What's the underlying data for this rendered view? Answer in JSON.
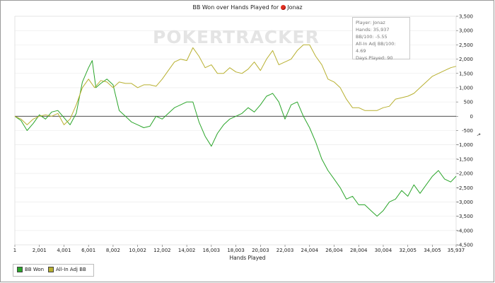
{
  "chart_data": {
    "type": "line",
    "title": "BB Won over Hands Played for",
    "player": "Jonaz",
    "watermark": "POKERTRACKER",
    "xlabel": "Hands Played",
    "xlim": [
      1,
      35937
    ],
    "ylim": [
      -4500,
      3500
    ],
    "x_ticks": [
      1,
      2001,
      4001,
      6001,
      8002,
      10002,
      12002,
      14002,
      16003,
      18003,
      20003,
      22003,
      24004,
      26004,
      28004,
      30004,
      32005,
      34005,
      35937
    ],
    "x_tick_labels": [
      "1",
      "2,001",
      "4,001",
      "6,001",
      "8,002",
      "10,002",
      "12,002",
      "14,002",
      "16,003",
      "18,003",
      "20,003",
      "22,003",
      "24,004",
      "26,004",
      "28,004",
      "30,004",
      "32,005",
      "34,005",
      "35,937"
    ],
    "y_ticks": [
      -4500,
      -4000,
      -3500,
      -3000,
      -2500,
      -2000,
      -1500,
      -1000,
      -500,
      0,
      500,
      1000,
      1500,
      2000,
      2500,
      3000,
      3500
    ],
    "y_tick_labels": [
      "-4,500",
      "-4,000",
      "-3,500",
      "-3,000",
      "-2,500",
      "-2,000",
      "-1,500",
      "-1,000",
      "-500",
      "0",
      "500",
      "1,000",
      "1,500",
      "2,000",
      "2,500",
      "3,000",
      "3,500"
    ],
    "grid": "horizontal",
    "series": [
      {
        "name": "BB Won",
        "color": "#2aa52a",
        "points": [
          [
            1,
            0
          ],
          [
            500,
            -150
          ],
          [
            1000,
            -500
          ],
          [
            1500,
            -250
          ],
          [
            2001,
            50
          ],
          [
            2500,
            -100
          ],
          [
            3000,
            150
          ],
          [
            3500,
            200
          ],
          [
            4001,
            -50
          ],
          [
            4500,
            -300
          ],
          [
            5000,
            100
          ],
          [
            5500,
            1200
          ],
          [
            6001,
            1700
          ],
          [
            6300,
            1950
          ],
          [
            6600,
            1000
          ],
          [
            7000,
            1150
          ],
          [
            7500,
            1300
          ],
          [
            8002,
            1100
          ],
          [
            8500,
            200
          ],
          [
            9000,
            0
          ],
          [
            9500,
            -200
          ],
          [
            10002,
            -300
          ],
          [
            10500,
            -400
          ],
          [
            11000,
            -350
          ],
          [
            11500,
            0
          ],
          [
            12002,
            -100
          ],
          [
            12500,
            100
          ],
          [
            13000,
            300
          ],
          [
            13500,
            400
          ],
          [
            14002,
            500
          ],
          [
            14500,
            500
          ],
          [
            15000,
            -200
          ],
          [
            15500,
            -700
          ],
          [
            16003,
            -1050
          ],
          [
            16500,
            -600
          ],
          [
            17000,
            -300
          ],
          [
            17500,
            -100
          ],
          [
            18003,
            0
          ],
          [
            18500,
            100
          ],
          [
            19000,
            300
          ],
          [
            19500,
            150
          ],
          [
            20003,
            400
          ],
          [
            20500,
            700
          ],
          [
            21000,
            800
          ],
          [
            21500,
            500
          ],
          [
            22003,
            -100
          ],
          [
            22500,
            400
          ],
          [
            23000,
            500
          ],
          [
            23500,
            0
          ],
          [
            24004,
            -400
          ],
          [
            24500,
            -900
          ],
          [
            25000,
            -1500
          ],
          [
            25500,
            -1900
          ],
          [
            26004,
            -2200
          ],
          [
            26500,
            -2500
          ],
          [
            27000,
            -2900
          ],
          [
            27500,
            -2800
          ],
          [
            28004,
            -3100
          ],
          [
            28500,
            -3100
          ],
          [
            29000,
            -3300
          ],
          [
            29500,
            -3500
          ],
          [
            30004,
            -3300
          ],
          [
            30500,
            -3000
          ],
          [
            31000,
            -2900
          ],
          [
            31500,
            -2600
          ],
          [
            32005,
            -2800
          ],
          [
            32500,
            -2400
          ],
          [
            33000,
            -2700
          ],
          [
            33500,
            -2400
          ],
          [
            34005,
            -2100
          ],
          [
            34500,
            -1900
          ],
          [
            35000,
            -2200
          ],
          [
            35500,
            -2300
          ],
          [
            35937,
            -2100
          ]
        ]
      },
      {
        "name": "All-In Adj BB",
        "color": "#b8b030",
        "points": [
          [
            1,
            0
          ],
          [
            500,
            -100
          ],
          [
            1000,
            -300
          ],
          [
            1500,
            -100
          ],
          [
            2001,
            0
          ],
          [
            2500,
            50
          ],
          [
            3000,
            0
          ],
          [
            3500,
            100
          ],
          [
            4001,
            -300
          ],
          [
            4500,
            -100
          ],
          [
            5000,
            400
          ],
          [
            5500,
            1000
          ],
          [
            6001,
            1300
          ],
          [
            6500,
            1000
          ],
          [
            7000,
            1250
          ],
          [
            7500,
            1200
          ],
          [
            8002,
            1000
          ],
          [
            8500,
            1200
          ],
          [
            9000,
            1150
          ],
          [
            9500,
            1150
          ],
          [
            10002,
            1000
          ],
          [
            10500,
            1100
          ],
          [
            11000,
            1100
          ],
          [
            11500,
            1050
          ],
          [
            12002,
            1300
          ],
          [
            12500,
            1600
          ],
          [
            13000,
            1900
          ],
          [
            13500,
            2000
          ],
          [
            14002,
            1950
          ],
          [
            14500,
            2400
          ],
          [
            15000,
            2100
          ],
          [
            15500,
            1700
          ],
          [
            16003,
            1800
          ],
          [
            16500,
            1500
          ],
          [
            17000,
            1500
          ],
          [
            17500,
            1700
          ],
          [
            18003,
            1550
          ],
          [
            18500,
            1500
          ],
          [
            19000,
            1650
          ],
          [
            19500,
            1900
          ],
          [
            20003,
            1600
          ],
          [
            20500,
            2000
          ],
          [
            21000,
            2300
          ],
          [
            21500,
            1800
          ],
          [
            22003,
            1900
          ],
          [
            22500,
            2000
          ],
          [
            23000,
            2300
          ],
          [
            23500,
            2500
          ],
          [
            24004,
            2500
          ],
          [
            24500,
            2100
          ],
          [
            25000,
            1800
          ],
          [
            25500,
            1300
          ],
          [
            26004,
            1200
          ],
          [
            26500,
            1000
          ],
          [
            27000,
            600
          ],
          [
            27500,
            300
          ],
          [
            28004,
            300
          ],
          [
            28500,
            200
          ],
          [
            29000,
            200
          ],
          [
            29500,
            200
          ],
          [
            30004,
            300
          ],
          [
            30500,
            350
          ],
          [
            31000,
            600
          ],
          [
            31500,
            650
          ],
          [
            32005,
            700
          ],
          [
            32500,
            800
          ],
          [
            33000,
            1000
          ],
          [
            33500,
            1200
          ],
          [
            34005,
            1400
          ],
          [
            34500,
            1500
          ],
          [
            35000,
            1600
          ],
          [
            35500,
            1700
          ],
          [
            35937,
            1750
          ]
        ]
      }
    ]
  },
  "info_box": {
    "player": "Player: Jonaz",
    "hands": "Hands: 35,937",
    "bb100": "BB/100: -5.55",
    "allin_bb100": "All-In Adj BB/100: 4.69",
    "days": "Days Played: 90"
  },
  "legend": {
    "bb_won": "BB Won",
    "allin": "All-In Adj BB"
  }
}
